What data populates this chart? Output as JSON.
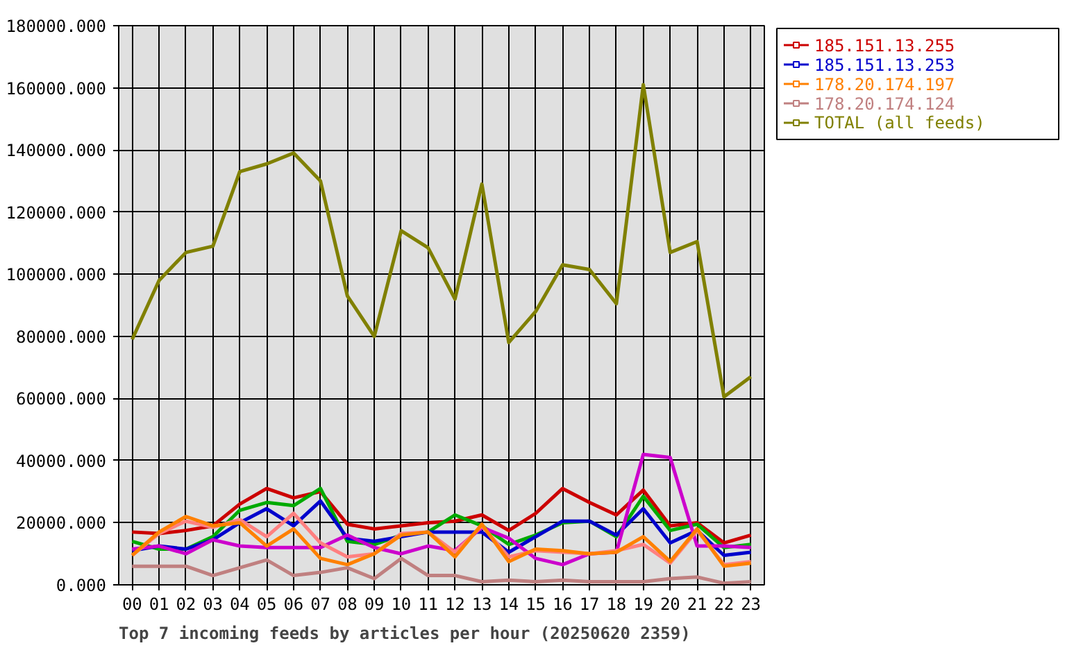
{
  "chart_data": {
    "type": "line",
    "title": "Top 7 incoming feeds by articles per hour (20250620 2359)",
    "categories": [
      "00",
      "01",
      "02",
      "03",
      "04",
      "05",
      "06",
      "07",
      "08",
      "09",
      "10",
      "11",
      "12",
      "13",
      "14",
      "15",
      "16",
      "17",
      "18",
      "19",
      "20",
      "21",
      "22",
      "23"
    ],
    "ylim": [
      0,
      180000
    ],
    "yticks": [
      {
        "value": 0,
        "label": "0.000"
      },
      {
        "value": 20000,
        "label": "20000.000"
      },
      {
        "value": 40000,
        "label": "40000.000"
      },
      {
        "value": 60000,
        "label": "60000.000"
      },
      {
        "value": 80000,
        "label": "80000.000"
      },
      {
        "value": 100000,
        "label": "100000.000"
      },
      {
        "value": 120000,
        "label": "120000.000"
      },
      {
        "value": 140000,
        "label": "140000.000"
      },
      {
        "value": 160000,
        "label": "160000.000"
      },
      {
        "value": 180000,
        "label": "180000.000"
      }
    ],
    "grid": true,
    "legend": "top right",
    "series": [
      {
        "name": "185.151.13.255",
        "color": "#cc0000",
        "values": [
          17000,
          16500,
          17500,
          19000,
          26000,
          31000,
          28000,
          30000,
          19500,
          18000,
          19000,
          20000,
          20500,
          22500,
          17500,
          23000,
          31000,
          26500,
          22500,
          30500,
          19000,
          20000,
          13500,
          16000
        ]
      },
      {
        "color": "#00aa00",
        "values": [
          14000,
          11500,
          11500,
          15500,
          24000,
          26500,
          25500,
          31000,
          14000,
          13000,
          16000,
          17000,
          22500,
          19000,
          13000,
          16000,
          20000,
          20500,
          15500,
          28500,
          17500,
          19500,
          12000,
          13000
        ]
      },
      {
        "name": "185.151.13.253",
        "color": "#0000cc",
        "values": [
          11000,
          12500,
          11500,
          14500,
          20000,
          24500,
          19000,
          27000,
          15000,
          14000,
          15500,
          17000,
          17000,
          17000,
          10500,
          15500,
          20500,
          20500,
          16000,
          24500,
          13500,
          17500,
          9500,
          10500
        ]
      },
      {
        "color": "#cc00cc",
        "values": [
          11500,
          12500,
          10000,
          14500,
          12500,
          12000,
          12000,
          12000,
          16000,
          12000,
          10000,
          12500,
          11000,
          18500,
          15000,
          8500,
          6500,
          10000,
          10500,
          42000,
          41000,
          12500,
          12500,
          12000
        ]
      },
      {
        "color": "#ff8080",
        "values": [
          9500,
          16500,
          20500,
          18500,
          21000,
          15500,
          23000,
          13500,
          9000,
          10000,
          16500,
          17000,
          10500,
          19000,
          9000,
          11000,
          10500,
          10000,
          11000,
          13000,
          7000,
          17500,
          6500,
          7500
        ]
      },
      {
        "name": "178.20.174.197",
        "color": "#ff8000",
        "values": [
          9500,
          17000,
          22000,
          19000,
          20000,
          12500,
          18000,
          8500,
          6500,
          10000,
          16000,
          17000,
          9000,
          19500,
          7500,
          11500,
          11000,
          10000,
          10500,
          15500,
          7500,
          18000,
          6000,
          7000
        ]
      },
      {
        "name": "178.20.174.124",
        "color": "#c08080",
        "values": [
          6000,
          6000,
          6000,
          3000,
          5500,
          8000,
          3000,
          4000,
          5500,
          2000,
          8500,
          3000,
          3000,
          1000,
          1500,
          1000,
          1500,
          1000,
          1000,
          1000,
          2000,
          2500,
          500,
          1000
        ]
      },
      {
        "name": "TOTAL (all feeds)",
        "color": "#808000",
        "values": [
          79000,
          98000,
          107000,
          109000,
          133000,
          135500,
          139000,
          130000,
          93000,
          80000,
          114000,
          108500,
          92000,
          129000,
          78000,
          88000,
          103000,
          101500,
          90500,
          161000,
          107000,
          110500,
          60500,
          67000
        ]
      }
    ]
  }
}
